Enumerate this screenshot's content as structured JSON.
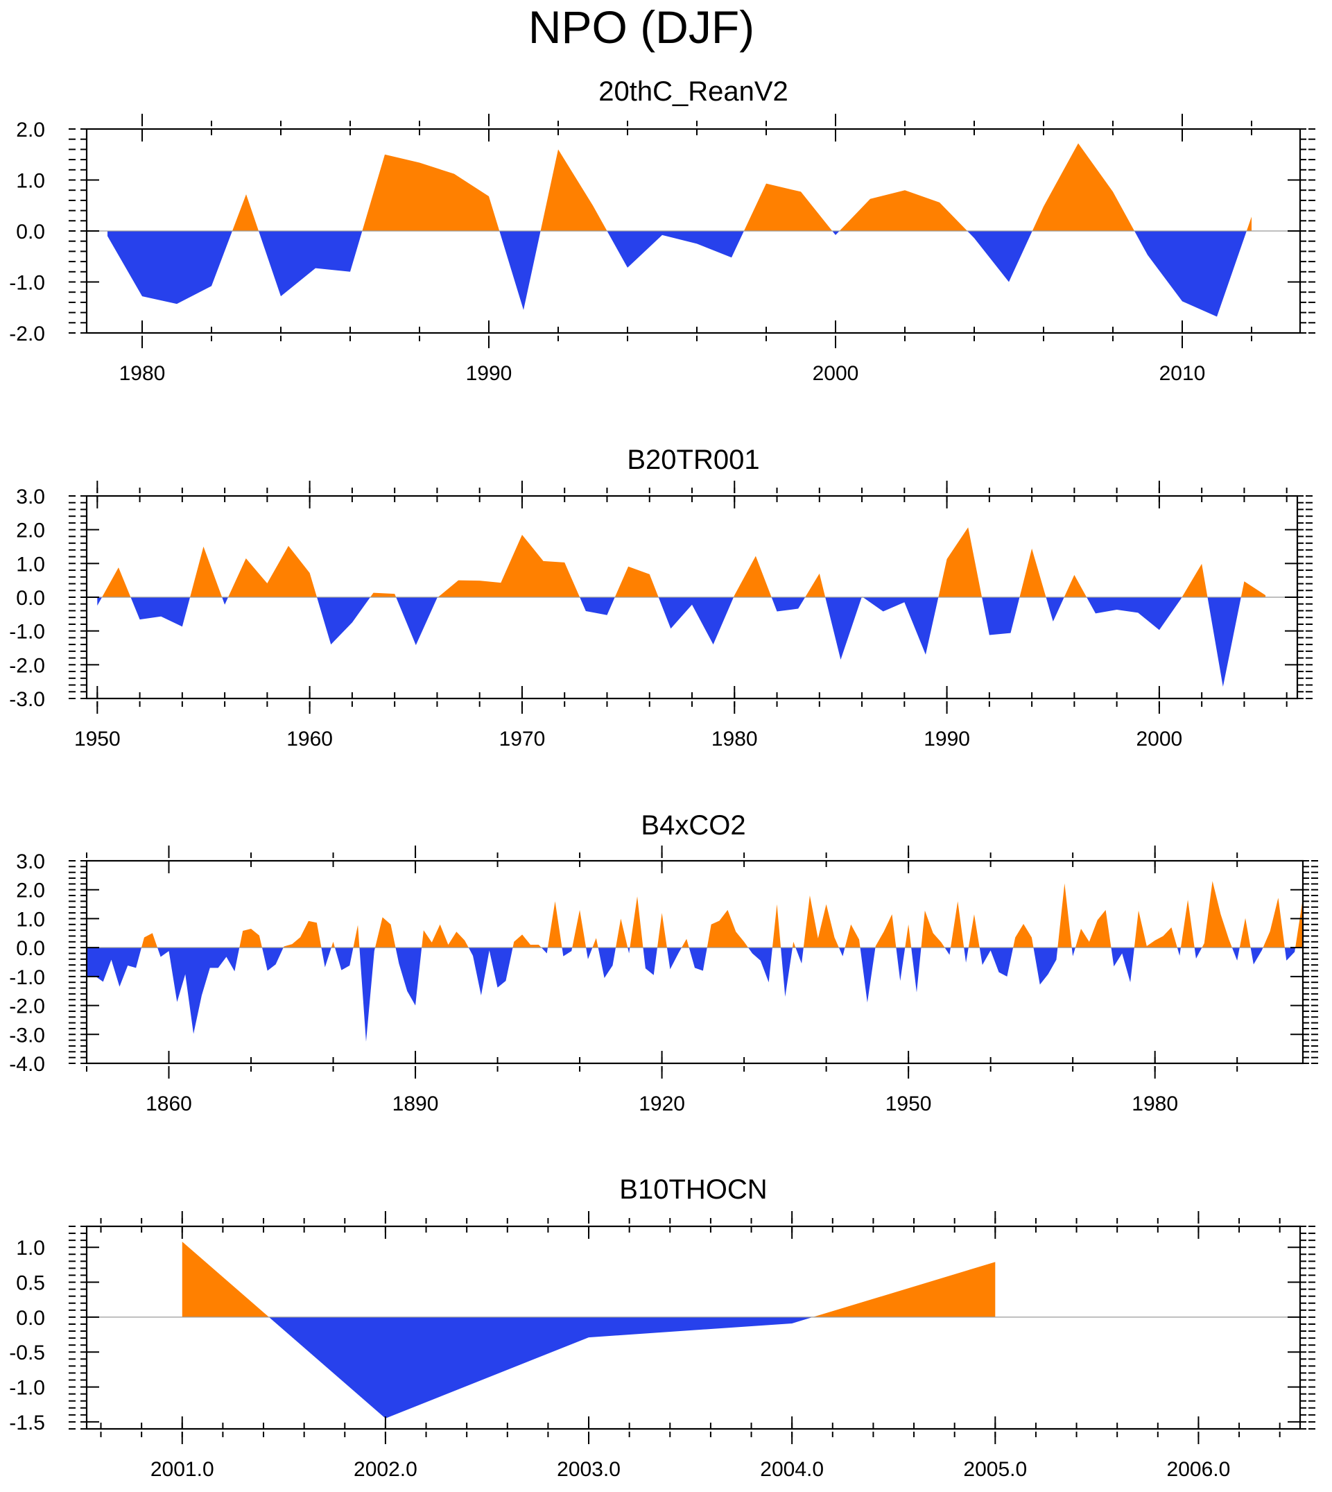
{
  "figure_title": "NPO (DJF)",
  "colors": {
    "positive": "#ff8000",
    "negative": "#2741ec",
    "axis": "#000000",
    "zero_line": "#999999"
  },
  "chart_data": [
    {
      "type": "area",
      "title": "20thC_ReanV2",
      "xlim": [
        1978.4,
        2013.4
      ],
      "ylim": [
        -2.0,
        2.0
      ],
      "x_ticks": [
        1980,
        1990,
        2000,
        2010
      ],
      "x_tick_labels": [
        "1980",
        "1990",
        "2000",
        "2010"
      ],
      "x_minor_step": 2,
      "y_ticks": [
        2.0,
        1.0,
        0.0,
        -1.0,
        -2.0
      ],
      "y_tick_labels": [
        "2.0",
        "1.0",
        "0.0",
        "-1.0",
        "-2.0"
      ],
      "y_minor_step": 0.2,
      "x": [
        1979,
        1980,
        1981,
        1982,
        1983,
        1984,
        1985,
        1986,
        1987,
        1988,
        1989,
        1990,
        1991,
        1992,
        1993,
        1994,
        1995,
        1996,
        1997,
        1998,
        1999,
        2000,
        2001,
        2002,
        2003,
        2004,
        2005,
        2006,
        2007,
        2008,
        2009,
        2010,
        2011,
        2012
      ],
      "values": [
        -0.1,
        -1.28,
        -1.43,
        -1.08,
        0.72,
        -1.28,
        -0.73,
        -0.8,
        1.5,
        1.34,
        1.12,
        0.68,
        -1.55,
        1.6,
        0.5,
        -0.72,
        -0.08,
        -0.25,
        -0.52,
        0.93,
        0.77,
        -0.08,
        0.63,
        0.8,
        0.56,
        -0.14,
        -1.0,
        0.48,
        1.72,
        0.77,
        -0.47,
        -1.38,
        -1.68,
        0.28
      ]
    },
    {
      "type": "area",
      "title": "B20TR001",
      "xlim": [
        1949.5,
        2006.5
      ],
      "ylim": [
        -3.0,
        3.0
      ],
      "x_ticks": [
        1950,
        1960,
        1970,
        1980,
        1990,
        2000
      ],
      "x_tick_labels": [
        "1950",
        "1960",
        "1970",
        "1980",
        "1990",
        "2000"
      ],
      "x_minor_step": 2,
      "y_ticks": [
        3.0,
        2.0,
        1.0,
        0.0,
        -1.0,
        -2.0,
        -3.0
      ],
      "y_tick_labels": [
        "3.0",
        "2.0",
        "1.0",
        "0.0",
        "-1.0",
        "-2.0",
        "-3.0"
      ],
      "y_minor_step": 0.2,
      "x": [
        1950,
        1951,
        1952,
        1953,
        1954,
        1955,
        1956,
        1957,
        1958,
        1959,
        1960,
        1961,
        1962,
        1963,
        1964,
        1965,
        1966,
        1967,
        1968,
        1969,
        1970,
        1971,
        1972,
        1973,
        1974,
        1975,
        1976,
        1977,
        1978,
        1979,
        1980,
        1981,
        1982,
        1983,
        1984,
        1985,
        1986,
        1987,
        1988,
        1989,
        1990,
        1991,
        1992,
        1993,
        1994,
        1995,
        1996,
        1997,
        1998,
        1999,
        2000,
        2001,
        2002,
        2003,
        2004,
        2005
      ],
      "values": [
        -0.25,
        0.88,
        -0.66,
        -0.57,
        -0.87,
        1.5,
        -0.22,
        1.15,
        0.41,
        1.52,
        0.72,
        -1.4,
        -0.75,
        0.13,
        0.1,
        -1.42,
        -0.02,
        0.5,
        0.49,
        0.43,
        1.85,
        1.07,
        1.03,
        -0.41,
        -0.53,
        0.91,
        0.68,
        -0.93,
        -0.22,
        -1.4,
        0.06,
        1.22,
        -0.42,
        -0.34,
        0.7,
        -1.85,
        0.02,
        -0.42,
        -0.15,
        -1.7,
        1.13,
        2.07,
        -1.12,
        -1.06,
        1.44,
        -0.72,
        0.66,
        -0.48,
        -0.37,
        -0.46,
        -0.97,
        -0.07,
        0.99,
        -2.65,
        0.47,
        0.06
      ]
    },
    {
      "type": "area",
      "title": "B4xCO2",
      "xlim": [
        1850,
        1998
      ],
      "ylim": [
        -4.0,
        3.0
      ],
      "x_ticks": [
        1860,
        1890,
        1920,
        1950,
        1980
      ],
      "x_tick_labels": [
        "1860",
        "1890",
        "1920",
        "1950",
        "1980"
      ],
      "x_minor_step": 10,
      "y_ticks": [
        3.0,
        2.0,
        1.0,
        0.0,
        -1.0,
        -2.0,
        -3.0,
        -4.0
      ],
      "y_tick_labels": [
        "3.0",
        "2.0",
        "1.0",
        "0.0",
        "-1.0",
        "-2.0",
        "-3.0",
        "-4.0"
      ],
      "y_minor_step": 0.2,
      "x_start": 1850,
      "x_step": 1,
      "values": [
        -1.0,
        -0.98,
        -1.18,
        -0.42,
        -1.35,
        -0.62,
        -0.7,
        0.35,
        0.5,
        -0.32,
        -0.12,
        -1.88,
        -0.92,
        -2.98,
        -1.65,
        -0.7,
        -0.7,
        -0.32,
        -0.82,
        0.58,
        0.65,
        0.42,
        -0.8,
        -0.58,
        0.04,
        0.12,
        0.36,
        0.92,
        0.86,
        -0.68,
        0.2,
        -0.78,
        -0.62,
        0.78,
        -3.25,
        -0.12,
        1.05,
        0.8,
        -0.55,
        -1.5,
        -2.0,
        0.6,
        0.18,
        0.8,
        0.1,
        0.55,
        0.25,
        -0.28,
        -1.65,
        -0.1,
        -1.38,
        -1.15,
        0.2,
        0.45,
        0.1,
        0.1,
        -0.2,
        1.6,
        -0.3,
        -0.12,
        1.3,
        -0.4,
        0.33,
        -1.05,
        -0.62,
        1.0,
        -0.2,
        1.77,
        -0.72,
        -0.95,
        1.2,
        -0.75,
        -0.2,
        0.3,
        -0.7,
        -0.8,
        0.8,
        0.93,
        1.3,
        0.55,
        0.2,
        -0.2,
        -0.45,
        -1.2,
        1.5,
        -1.7,
        0.2,
        -0.55,
        1.8,
        0.32,
        1.5,
        0.35,
        -0.3,
        0.8,
        0.28,
        -1.9,
        0.05,
        0.55,
        1.15,
        -1.15,
        0.8,
        -1.55,
        1.28,
        0.5,
        0.18,
        -0.25,
        1.6,
        -0.52,
        1.15,
        -0.6,
        -0.1,
        -0.85,
        -1.0,
        0.35,
        0.82,
        0.35,
        -1.28,
        -0.92,
        -0.42,
        2.22,
        -0.3,
        0.65,
        0.2,
        0.95,
        1.3,
        -0.65,
        -0.2,
        -1.2,
        1.28,
        0.05,
        0.25,
        0.4,
        0.7,
        -0.28,
        1.65,
        -0.38,
        0.15,
        2.3,
        1.15,
        0.28,
        -0.45,
        1.02,
        -0.58,
        -0.1,
        0.56,
        1.72,
        -0.45,
        -0.15,
        1.7
      ]
    },
    {
      "type": "area",
      "title": "B10THOCN",
      "xlim": [
        2000.53,
        2006.5
      ],
      "ylim": [
        -1.6,
        1.3
      ],
      "x_ticks": [
        2001,
        2002,
        2003,
        2004,
        2005,
        2006
      ],
      "x_tick_labels": [
        "2001.0",
        "2002.0",
        "2003.0",
        "2004.0",
        "2005.0",
        "2006.0"
      ],
      "x_minor_step": 0.2,
      "y_ticks": [
        1.0,
        0.5,
        0.0,
        -0.5,
        -1.0,
        -1.5
      ],
      "y_tick_labels": [
        "1.0",
        "0.5",
        "0.0",
        "-0.5",
        "-1.0",
        "-1.5"
      ],
      "y_minor_step": 0.1,
      "x": [
        2001,
        2002,
        2003,
        2004,
        2005
      ],
      "values": [
        1.08,
        -1.45,
        -0.29,
        -0.09,
        0.79
      ]
    }
  ]
}
